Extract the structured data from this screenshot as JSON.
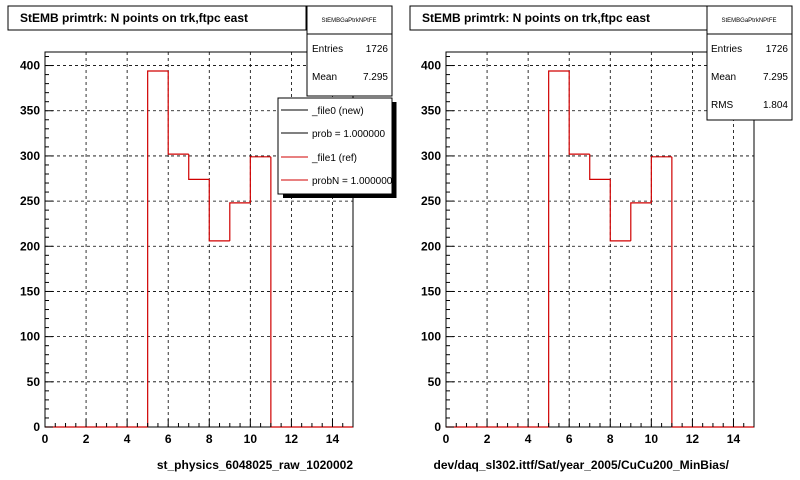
{
  "colors": {
    "reference": "#d00000",
    "new": "#000000",
    "grid": "#000000",
    "background": "#ffffff"
  },
  "chart_data": [
    {
      "type": "histogram",
      "title": "StEMB primtrk: N points on trk,ftpc east",
      "xlabel": "st_physics_6048025_raw_1020002",
      "xlim": [
        0,
        15
      ],
      "ylim": [
        0,
        415
      ],
      "x_ticks": [
        "0",
        "2",
        "4",
        "6",
        "8",
        "10",
        "12",
        "14"
      ],
      "y_ticks": [
        "0",
        "50",
        "100",
        "150",
        "200",
        "250",
        "300",
        "350",
        "400"
      ],
      "grid": true,
      "bin_edges": [
        0,
        1,
        2,
        3,
        4,
        5,
        6,
        7,
        8,
        9,
        10,
        11,
        12,
        13,
        14,
        15
      ],
      "values": [
        0,
        0,
        0,
        0,
        0,
        394,
        302,
        274,
        206,
        248,
        299,
        0,
        0,
        0,
        0
      ],
      "stats": {
        "title": "StEMBGaPtrkNPtFE",
        "rows": [
          {
            "label": "Entries",
            "value": "1726"
          },
          {
            "label": "Mean",
            "value": "7.295"
          }
        ]
      },
      "legend": {
        "placement": "top-right",
        "entries": [
          {
            "label": "_file0 (new)",
            "color": "#000000"
          },
          {
            "label": "prob = 1.000000",
            "color": "#000000"
          },
          {
            "label": "_file1 (ref)",
            "color": "#d00000"
          },
          {
            "label": "probN = 1.000000",
            "color": "#d00000"
          }
        ]
      }
    },
    {
      "type": "histogram",
      "title": "StEMB primtrk: N points on trk,ftpc east",
      "xlabel": "dev/daq_sl302.ittf/Sat/year_2005/CuCu200_MinBias/",
      "xlim": [
        0,
        15
      ],
      "ylim": [
        0,
        415
      ],
      "x_ticks": [
        "0",
        "2",
        "4",
        "6",
        "8",
        "10",
        "12",
        "14"
      ],
      "y_ticks": [
        "0",
        "50",
        "100",
        "150",
        "200",
        "250",
        "300",
        "350",
        "400"
      ],
      "grid": true,
      "bin_edges": [
        0,
        1,
        2,
        3,
        4,
        5,
        6,
        7,
        8,
        9,
        10,
        11,
        12,
        13,
        14,
        15
      ],
      "values": [
        0,
        0,
        0,
        0,
        0,
        394,
        302,
        274,
        206,
        248,
        299,
        0,
        0,
        0,
        0
      ],
      "stats": {
        "title": "StEMBGaPtrkNPtFE",
        "rows": [
          {
            "label": "Entries",
            "value": "1726"
          },
          {
            "label": "Mean",
            "value": "7.295"
          },
          {
            "label": "RMS",
            "value": "1.804"
          }
        ]
      }
    }
  ]
}
